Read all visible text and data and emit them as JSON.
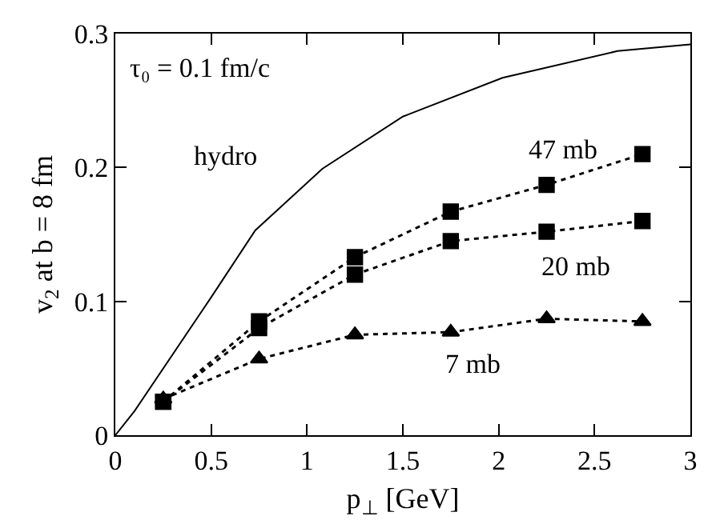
{
  "chart_data": {
    "type": "line",
    "xlabel": "p$_{⊥}$ [GeV]",
    "ylabel": "v$_{2}$ at b = 8 fm",
    "annotations": [
      "τ₀ = 0.1 fm/c"
    ],
    "xlim": [
      0,
      3
    ],
    "xticks": [
      0,
      0.5,
      1,
      1.5,
      2,
      2.5,
      3
    ],
    "ylim": [
      0,
      0.3
    ],
    "yticks": [
      0,
      0.1,
      0.2,
      0.3
    ],
    "legend": false,
    "series": [
      {
        "name": "hydro",
        "color": "#000000",
        "line_style": "solid",
        "marker": "none",
        "x": [
          0,
          0.1,
          0.5,
          0.73,
          1.08,
          1.5,
          2.02,
          2.62,
          3.0
        ],
        "values": [
          0,
          0.018,
          0.103,
          0.153,
          0.199,
          0.238,
          0.267,
          0.287,
          0.292
        ]
      },
      {
        "name": "47 mb",
        "color": "#000000",
        "line_style": "dotted",
        "marker": "square",
        "x": [
          0.25,
          0.75,
          1.25,
          1.75,
          2.25,
          2.75
        ],
        "values": [
          0.025,
          0.085,
          0.133,
          0.167,
          0.187,
          0.21
        ]
      },
      {
        "name": "20 mb",
        "color": "#000000",
        "line_style": "dotted",
        "marker": "square",
        "x": [
          0.25,
          0.75,
          1.25,
          1.75,
          2.25,
          2.75
        ],
        "values": [
          0.025,
          0.08,
          0.12,
          0.145,
          0.152,
          0.16
        ]
      },
      {
        "name": "7 mb",
        "color": "#000000",
        "line_style": "dotted",
        "marker": "triangle",
        "x": [
          0.25,
          0.75,
          1.25,
          1.75,
          2.25,
          2.75
        ],
        "values": [
          0.027,
          0.057,
          0.075,
          0.077,
          0.087,
          0.085
        ]
      }
    ]
  }
}
